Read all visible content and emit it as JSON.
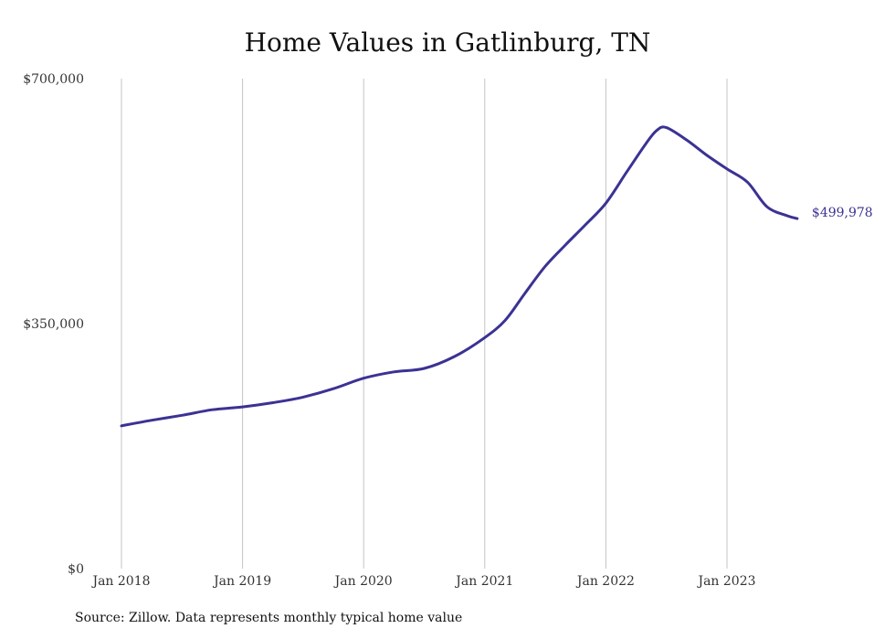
{
  "chart_data": {
    "type": "line",
    "title": "Home Values in Gatlinburg, TN",
    "xlabel": "",
    "ylabel": "",
    "ylim": [
      0,
      700000
    ],
    "y_ticks": [
      {
        "value": 0,
        "label": "$0"
      },
      {
        "value": 350000,
        "label": "$350,000"
      },
      {
        "value": 700000,
        "label": "$700,000"
      }
    ],
    "x_ticks": [
      {
        "value": 2018.0,
        "label": "Jan 2018"
      },
      {
        "value": 2019.0,
        "label": "Jan 2019"
      },
      {
        "value": 2020.0,
        "label": "Jan 2020"
      },
      {
        "value": 2021.0,
        "label": "Jan 2021"
      },
      {
        "value": 2022.0,
        "label": "Jan 2022"
      },
      {
        "value": 2023.0,
        "label": "Jan 2023"
      }
    ],
    "xlim": [
      2018.0,
      2023.6
    ],
    "grid": "vertical",
    "line_color": "#3b3294",
    "end_label": "$499,978",
    "series": [
      {
        "x": [
          2018.0,
          2018.25,
          2018.5,
          2018.75,
          2019.0,
          2019.25,
          2019.5,
          2019.75,
          2020.0,
          2020.25,
          2020.5,
          2020.75,
          2021.0,
          2021.17,
          2021.33,
          2021.5,
          2021.67,
          2021.83,
          2022.0,
          2022.17,
          2022.33,
          2022.42,
          2022.5,
          2022.67,
          2022.83,
          2023.0,
          2023.17,
          2023.33,
          2023.5,
          2023.58
        ],
        "y": [
          204000,
          212000,
          219000,
          227000,
          231000,
          237000,
          245000,
          257000,
          272000,
          281000,
          286000,
          303000,
          330000,
          355000,
          393000,
          432000,
          463000,
          491000,
          522000,
          566000,
          607000,
          626000,
          630000,
          612000,
          591000,
          571000,
          552000,
          517000,
          504000,
          500000
        ]
      }
    ]
  },
  "source_note": "Source: Zillow. Data represents monthly typical home value"
}
